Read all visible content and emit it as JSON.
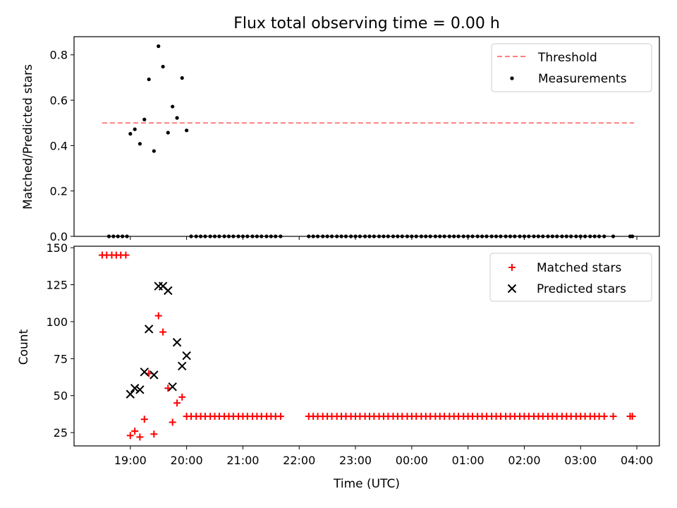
{
  "title": "Flux total observing time = 0.00 h",
  "chart_data": [
    {
      "type": "scatter",
      "ylabel": "Matched/Predicted stars",
      "xlim": [
        18.0,
        4.4
      ],
      "ylim": [
        0.0,
        0.88
      ],
      "yticks": [
        0.0,
        0.2,
        0.4,
        0.6,
        0.8
      ],
      "ytick_labels": [
        "0.0",
        "0.2",
        "0.4",
        "0.6",
        "0.8"
      ],
      "threshold": {
        "name": "Threshold",
        "value": 0.5,
        "x_range": [
          18.5,
          3.95
        ],
        "color": "#ff7f7f"
      },
      "legend": {
        "position": "upper-right",
        "entries": [
          "Threshold",
          "Measurements"
        ]
      },
      "series": [
        {
          "name": "Measurements",
          "marker": "dot",
          "color": "#000000",
          "points": [
            [
              18.62,
              0
            ],
            [
              18.7,
              0
            ],
            [
              18.78,
              0
            ],
            [
              18.86,
              0
            ],
            [
              18.94,
              0
            ],
            [
              19.0,
              0.452
            ],
            [
              19.08,
              0.472
            ],
            [
              19.17,
              0.408
            ],
            [
              19.25,
              0.515
            ],
            [
              19.33,
              0.692
            ],
            [
              19.42,
              0.376
            ],
            [
              19.5,
              0.838
            ],
            [
              19.58,
              0.748
            ],
            [
              19.67,
              0.457
            ],
            [
              19.75,
              0.572
            ],
            [
              19.83,
              0.522
            ],
            [
              19.92,
              0.698
            ],
            [
              20.0,
              0.467
            ],
            [
              20.08,
              0
            ],
            [
              20.17,
              0
            ],
            [
              20.25,
              0
            ],
            [
              20.33,
              0
            ],
            [
              20.42,
              0
            ],
            [
              20.5,
              0
            ],
            [
              20.58,
              0
            ],
            [
              20.67,
              0
            ],
            [
              20.75,
              0
            ],
            [
              20.83,
              0
            ],
            [
              20.92,
              0
            ],
            [
              21.0,
              0
            ],
            [
              21.08,
              0
            ],
            [
              21.17,
              0
            ],
            [
              21.25,
              0
            ],
            [
              21.33,
              0
            ],
            [
              21.42,
              0
            ],
            [
              21.5,
              0
            ],
            [
              21.58,
              0
            ],
            [
              21.67,
              0
            ],
            [
              22.17,
              0
            ],
            [
              22.25,
              0
            ],
            [
              22.33,
              0
            ],
            [
              22.42,
              0
            ],
            [
              22.5,
              0
            ],
            [
              22.58,
              0
            ],
            [
              22.67,
              0
            ],
            [
              22.75,
              0
            ],
            [
              22.83,
              0
            ],
            [
              22.92,
              0
            ],
            [
              23.0,
              0
            ],
            [
              23.08,
              0
            ],
            [
              23.17,
              0
            ],
            [
              23.25,
              0
            ],
            [
              23.33,
              0
            ],
            [
              23.42,
              0
            ],
            [
              23.5,
              0
            ],
            [
              23.58,
              0
            ],
            [
              23.67,
              0
            ],
            [
              23.75,
              0
            ],
            [
              23.83,
              0
            ],
            [
              23.92,
              0
            ],
            [
              0.0,
              0
            ],
            [
              0.08,
              0
            ],
            [
              0.17,
              0
            ],
            [
              0.25,
              0
            ],
            [
              0.33,
              0
            ],
            [
              0.42,
              0
            ],
            [
              0.5,
              0
            ],
            [
              0.58,
              0
            ],
            [
              0.67,
              0
            ],
            [
              0.75,
              0
            ],
            [
              0.83,
              0
            ],
            [
              0.92,
              0
            ],
            [
              1.0,
              0
            ],
            [
              1.08,
              0
            ],
            [
              1.17,
              0
            ],
            [
              1.25,
              0
            ],
            [
              1.33,
              0
            ],
            [
              1.42,
              0
            ],
            [
              1.5,
              0
            ],
            [
              1.58,
              0
            ],
            [
              1.67,
              0
            ],
            [
              1.75,
              0
            ],
            [
              1.83,
              0
            ],
            [
              1.92,
              0
            ],
            [
              2.0,
              0
            ],
            [
              2.08,
              0
            ],
            [
              2.17,
              0
            ],
            [
              2.25,
              0
            ],
            [
              2.33,
              0
            ],
            [
              2.42,
              0
            ],
            [
              2.5,
              0
            ],
            [
              2.58,
              0
            ],
            [
              2.67,
              0
            ],
            [
              2.75,
              0
            ],
            [
              2.83,
              0
            ],
            [
              2.92,
              0
            ],
            [
              3.0,
              0
            ],
            [
              3.08,
              0
            ],
            [
              3.17,
              0
            ],
            [
              3.25,
              0
            ],
            [
              3.33,
              0
            ],
            [
              3.42,
              0
            ],
            [
              3.58,
              0
            ],
            [
              3.88,
              0
            ],
            [
              3.92,
              0
            ]
          ]
        }
      ]
    },
    {
      "type": "scatter",
      "xlabel": "Time (UTC)",
      "ylabel": "Count",
      "xlim": [
        18.0,
        4.4
      ],
      "ylim": [
        16,
        151
      ],
      "yticks": [
        25,
        50,
        75,
        100,
        125,
        150
      ],
      "ytick_labels": [
        "25",
        "50",
        "75",
        "100",
        "125",
        "150"
      ],
      "xticks": [
        19,
        20,
        21,
        22,
        23,
        0,
        1,
        2,
        3,
        4
      ],
      "xtick_labels": [
        "19:00",
        "20:00",
        "21:00",
        "22:00",
        "23:00",
        "00:00",
        "01:00",
        "02:00",
        "03:00",
        "04:00"
      ],
      "legend": {
        "position": "upper-right",
        "entries": [
          "Matched stars",
          "Predicted stars"
        ]
      },
      "series": [
        {
          "name": "Matched stars",
          "marker": "plus",
          "color": "#ff0000",
          "points": [
            [
              18.5,
              145
            ],
            [
              18.58,
              145
            ],
            [
              18.67,
              145
            ],
            [
              18.75,
              145
            ],
            [
              18.83,
              145
            ],
            [
              18.92,
              145
            ],
            [
              19.0,
              23
            ],
            [
              19.08,
              26
            ],
            [
              19.17,
              22
            ],
            [
              19.25,
              34
            ],
            [
              19.33,
              65
            ],
            [
              19.42,
              24
            ],
            [
              19.5,
              104
            ],
            [
              19.58,
              93
            ],
            [
              19.67,
              55
            ],
            [
              19.75,
              32
            ],
            [
              19.83,
              45
            ],
            [
              19.92,
              49
            ],
            [
              20.0,
              36
            ],
            [
              20.08,
              36
            ],
            [
              20.17,
              36
            ],
            [
              20.25,
              36
            ],
            [
              20.33,
              36
            ],
            [
              20.42,
              36
            ],
            [
              20.5,
              36
            ],
            [
              20.58,
              36
            ],
            [
              20.67,
              36
            ],
            [
              20.75,
              36
            ],
            [
              20.83,
              36
            ],
            [
              20.92,
              36
            ],
            [
              21.0,
              36
            ],
            [
              21.08,
              36
            ],
            [
              21.17,
              36
            ],
            [
              21.25,
              36
            ],
            [
              21.33,
              36
            ],
            [
              21.42,
              36
            ],
            [
              21.5,
              36
            ],
            [
              21.58,
              36
            ],
            [
              21.67,
              36
            ],
            [
              22.17,
              36
            ],
            [
              22.25,
              36
            ],
            [
              22.33,
              36
            ],
            [
              22.42,
              36
            ],
            [
              22.5,
              36
            ],
            [
              22.58,
              36
            ],
            [
              22.67,
              36
            ],
            [
              22.75,
              36
            ],
            [
              22.83,
              36
            ],
            [
              22.92,
              36
            ],
            [
              23.0,
              36
            ],
            [
              23.08,
              36
            ],
            [
              23.17,
              36
            ],
            [
              23.25,
              36
            ],
            [
              23.33,
              36
            ],
            [
              23.42,
              36
            ],
            [
              23.5,
              36
            ],
            [
              23.58,
              36
            ],
            [
              23.67,
              36
            ],
            [
              23.75,
              36
            ],
            [
              23.83,
              36
            ],
            [
              23.92,
              36
            ],
            [
              0.0,
              36
            ],
            [
              0.08,
              36
            ],
            [
              0.17,
              36
            ],
            [
              0.25,
              36
            ],
            [
              0.33,
              36
            ],
            [
              0.42,
              36
            ],
            [
              0.5,
              36
            ],
            [
              0.58,
              36
            ],
            [
              0.67,
              36
            ],
            [
              0.75,
              36
            ],
            [
              0.83,
              36
            ],
            [
              0.92,
              36
            ],
            [
              1.0,
              36
            ],
            [
              1.08,
              36
            ],
            [
              1.17,
              36
            ],
            [
              1.25,
              36
            ],
            [
              1.33,
              36
            ],
            [
              1.42,
              36
            ],
            [
              1.5,
              36
            ],
            [
              1.58,
              36
            ],
            [
              1.67,
              36
            ],
            [
              1.75,
              36
            ],
            [
              1.83,
              36
            ],
            [
              1.92,
              36
            ],
            [
              2.0,
              36
            ],
            [
              2.08,
              36
            ],
            [
              2.17,
              36
            ],
            [
              2.25,
              36
            ],
            [
              2.33,
              36
            ],
            [
              2.42,
              36
            ],
            [
              2.5,
              36
            ],
            [
              2.58,
              36
            ],
            [
              2.67,
              36
            ],
            [
              2.75,
              36
            ],
            [
              2.83,
              36
            ],
            [
              2.92,
              36
            ],
            [
              3.0,
              36
            ],
            [
              3.08,
              36
            ],
            [
              3.17,
              36
            ],
            [
              3.25,
              36
            ],
            [
              3.33,
              36
            ],
            [
              3.42,
              36
            ],
            [
              3.58,
              36
            ],
            [
              3.88,
              36
            ],
            [
              3.92,
              36
            ]
          ]
        },
        {
          "name": "Predicted stars",
          "marker": "x",
          "color": "#000000",
          "points": [
            [
              19.0,
              51
            ],
            [
              19.08,
              55
            ],
            [
              19.17,
              54
            ],
            [
              19.25,
              66
            ],
            [
              19.33,
              95
            ],
            [
              19.42,
              64
            ],
            [
              19.5,
              124
            ],
            [
              19.58,
              124
            ],
            [
              19.67,
              121
            ],
            [
              19.75,
              56
            ],
            [
              19.83,
              86
            ],
            [
              19.92,
              70
            ],
            [
              20.0,
              77
            ]
          ]
        }
      ]
    }
  ]
}
